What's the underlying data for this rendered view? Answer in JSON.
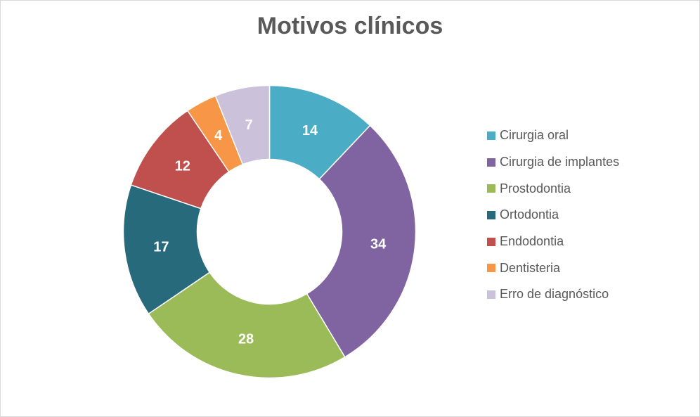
{
  "chart_data": {
    "type": "pie",
    "subtype": "donut",
    "title": "Motivos clínicos",
    "categories": [
      "Cirurgia oral",
      "Cirurgia de implantes",
      "Prostodontia",
      "Ortodontia",
      "Endodontia",
      "Dentisteria",
      "Erro de diagnóstico"
    ],
    "values": [
      14,
      34,
      28,
      17,
      12,
      4,
      7
    ],
    "colors": [
      "#4BACC6",
      "#8064A2",
      "#9BBB59",
      "#276A7C",
      "#C0504D",
      "#F79646",
      "#CCC1DA"
    ],
    "legend_position": "right"
  }
}
